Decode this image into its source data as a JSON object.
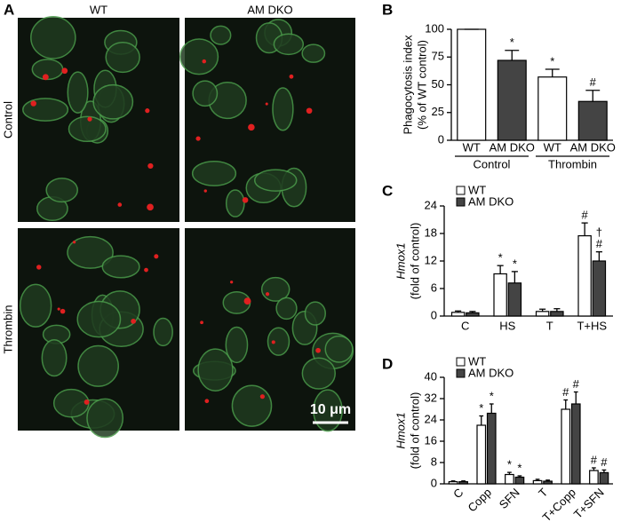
{
  "panel_a": {
    "panel_label": "A",
    "columns": [
      "WT",
      "AM DKO"
    ],
    "rows": [
      "Control",
      "Thrombin"
    ],
    "scale_bar": "10 μm"
  },
  "chart_data": [
    {
      "type": "bar",
      "panel_label": "B",
      "ylabel": [
        "Phagocytosis index",
        "(% of WT control)"
      ],
      "categories": [
        "WT",
        "AM DKO",
        "WT",
        "AM DKO"
      ],
      "group_labels": [
        "Control",
        "Thrombin"
      ],
      "values": [
        100,
        72,
        57,
        35
      ],
      "errors": [
        0,
        9,
        7,
        10
      ],
      "annotations": [
        null,
        "*",
        "*",
        "#"
      ],
      "colors": [
        "#ffffff",
        "#444444",
        "#ffffff",
        "#444444"
      ],
      "ylim": [
        0,
        100
      ],
      "yticks": [
        0,
        25,
        50,
        75,
        100
      ]
    },
    {
      "type": "grouped_bar",
      "panel_label": "C",
      "ylabel": [
        "Hmox1",
        "(fold of control)"
      ],
      "categories": [
        "C",
        "HS",
        "T",
        "T+HS"
      ],
      "series": [
        {
          "name": "WT",
          "color": "#ffffff",
          "values": [
            0.8,
            9.2,
            1.0,
            17.5
          ],
          "errors": [
            0.3,
            1.8,
            0.5,
            2.8
          ],
          "annotations": [
            null,
            "*",
            null,
            "#"
          ]
        },
        {
          "name": "AM DKO",
          "color": "#444444",
          "values": [
            0.7,
            7.2,
            1.0,
            12
          ],
          "errors": [
            0.3,
            2.5,
            0.6,
            2
          ],
          "annotations": [
            null,
            "*",
            null,
            [
              "†",
              "#"
            ]
          ]
        }
      ],
      "ylim": [
        0,
        24
      ],
      "yticks": [
        0,
        6,
        12,
        18,
        24
      ]
    },
    {
      "type": "grouped_bar",
      "panel_label": "D",
      "ylabel": [
        "Hmox1",
        "(fold of control)"
      ],
      "categories": [
        "C",
        "Copp",
        "SFN",
        "T",
        "T+Copp",
        "T+SFN"
      ],
      "xtick_rotation": -45,
      "series": [
        {
          "name": "WT",
          "color": "#ffffff",
          "values": [
            0.8,
            22,
            3.5,
            1.2,
            28,
            5
          ],
          "errors": [
            0.3,
            3.5,
            0.8,
            0.5,
            3.5,
            1
          ],
          "annotations": [
            null,
            "*",
            "*",
            null,
            "#",
            "#"
          ]
        },
        {
          "name": "AM DKO",
          "color": "#444444",
          "values": [
            0.8,
            26.5,
            2.5,
            1.0,
            30,
            4.2
          ],
          "errors": [
            0.3,
            3.5,
            0.5,
            0.4,
            4.5,
            1
          ],
          "annotations": [
            null,
            "*",
            "*",
            null,
            "#",
            "#"
          ]
        }
      ],
      "ylim": [
        0,
        40
      ],
      "yticks": [
        0,
        8,
        16,
        24,
        32,
        40
      ]
    }
  ]
}
